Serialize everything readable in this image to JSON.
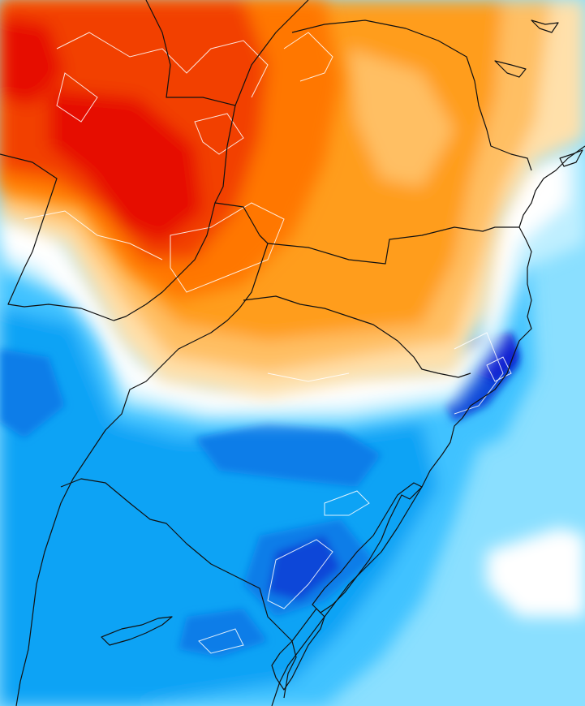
{
  "map": {
    "colors": {
      "very_hot": "#e60a00",
      "hot": "#f23f00",
      "warm": "#ff7700",
      "mild": "#ff9d1a",
      "light_warm": "#ffbf63",
      "pale_warm": "#ffe0aa",
      "neutral": "#ffffff",
      "pale_cool": "#bfefff",
      "light_cool": "#8adfff",
      "cool": "#3fc2ff",
      "cold": "#07a3f5",
      "colder": "#0b7de8",
      "very_cold": "#1146d8",
      "extreme_cold": "#0a1ed0",
      "boundary": "#111111",
      "contour": "#ffffff"
    }
  }
}
